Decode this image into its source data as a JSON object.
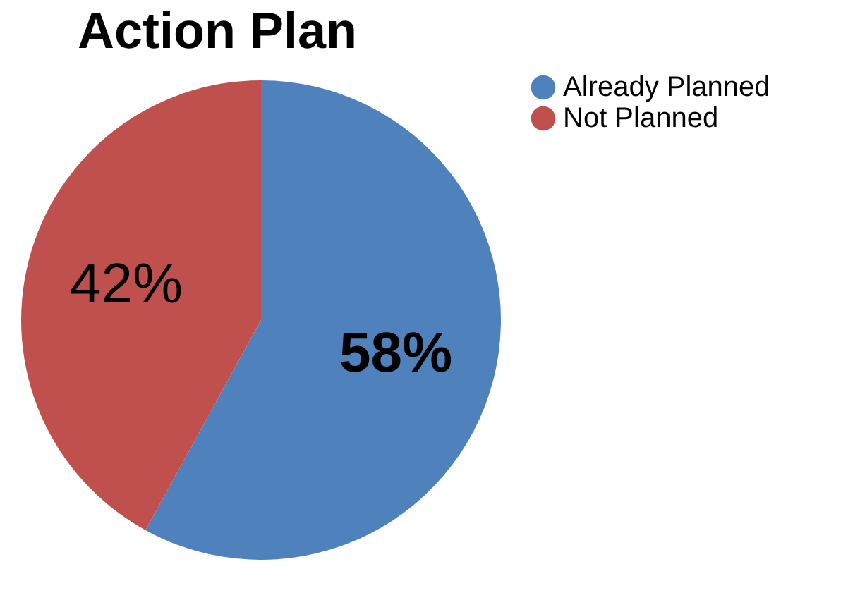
{
  "chart_data": {
    "type": "pie",
    "title": "Action Plan",
    "categories": [
      "Already Planned",
      "Not Planned"
    ],
    "values": [
      58,
      42
    ],
    "colors": [
      "#4f81bd",
      "#c0504d"
    ],
    "value_labels": [
      "58%",
      "42%"
    ],
    "legend": "right"
  }
}
